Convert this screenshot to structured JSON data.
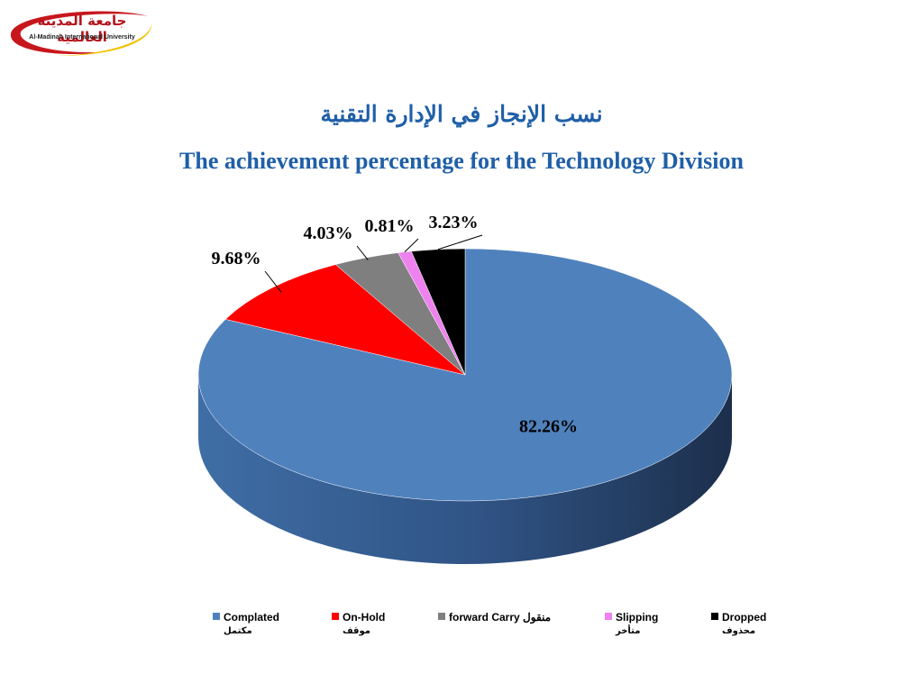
{
  "logo": {
    "name_ar": "جامعة المدينة العالمية",
    "name_en": "Al-Madinah International University",
    "colors": {
      "red": "#c8161d",
      "gold": "#f2c200"
    }
  },
  "title_ar": "نسب الإنجاز في الإدارة التقنية",
  "title_en": "The achievement percentage for the Technology Division",
  "chart_data": {
    "type": "pie",
    "style": "3d",
    "start_angle_deg": 0,
    "direction": "clockwise",
    "legend_position": "bottom",
    "slices": [
      {
        "label": "Complated",
        "label_ar": "مكتمل",
        "value": 82.26,
        "display": "82.26%",
        "color": "#4f81bd"
      },
      {
        "label": "On-Hold",
        "label_ar": "موقف",
        "value": 9.68,
        "display": "9.68%",
        "color": "#ff0000"
      },
      {
        "label": "forward Carry منقول",
        "label_ar": "",
        "value": 4.03,
        "display": "4.03%",
        "color": "#7f7f7f"
      },
      {
        "label": "Slipping",
        "label_ar": "متأخر",
        "value": 0.81,
        "display": "0.81%",
        "color": "#ee82ee"
      },
      {
        "label": "Dropped",
        "label_ar": "محذوف",
        "value": 3.23,
        "display": "3.23%",
        "color": "#000000"
      }
    ]
  }
}
